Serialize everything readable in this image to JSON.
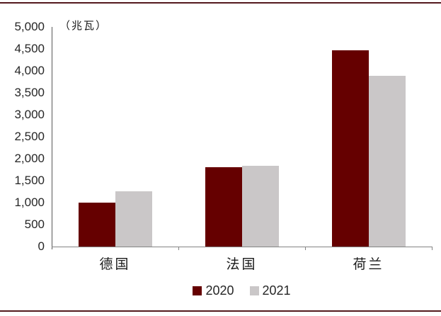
{
  "page": {
    "top_border_color": "#54191d",
    "bottom_border_color": "#54191d",
    "background": "#ffffff"
  },
  "chart_data": {
    "type": "bar",
    "title": "",
    "unit_label": "（兆瓦）",
    "xlabel": "",
    "ylabel": "兆瓦",
    "categories": [
      "德国",
      "法国",
      "荷兰"
    ],
    "series": [
      {
        "name": "2020",
        "color": "#650000",
        "values": [
          1000,
          1800,
          4460
        ]
      },
      {
        "name": "2021",
        "color": "#cac7c8",
        "values": [
          1250,
          1840,
          3890
        ]
      }
    ],
    "y_axis": {
      "min": 0,
      "max": 5000,
      "step": 500,
      "tick_labels": [
        "5,000",
        "4,500",
        "4,000",
        "3,500",
        "3,000",
        "2,500",
        "2,000",
        "1,500",
        "1,000",
        "500",
        "0"
      ]
    },
    "legend": {
      "position": "bottom-center",
      "labels": [
        "2020",
        "2021"
      ]
    },
    "grid": false,
    "axis_color_x": "#848484",
    "axis_color_y": "#595959",
    "text_color": "#262626"
  }
}
